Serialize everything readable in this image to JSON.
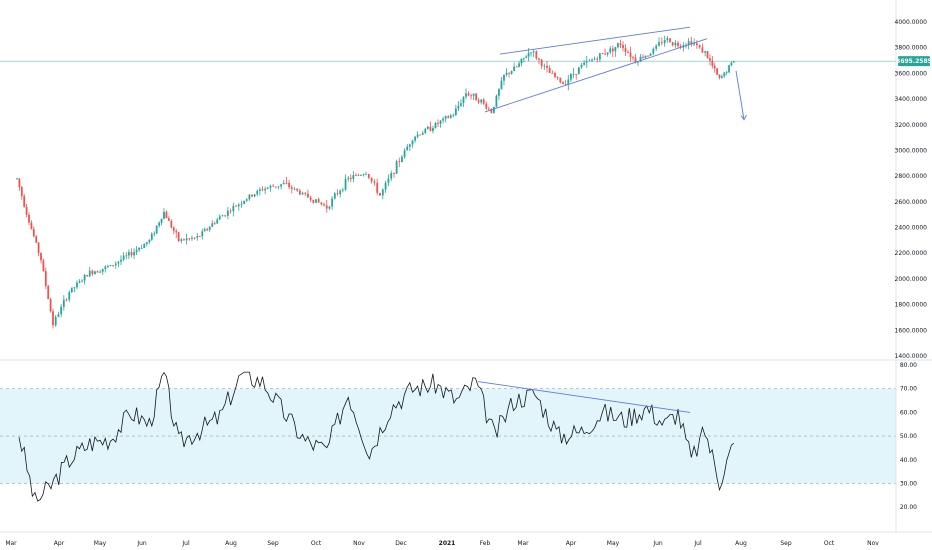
{
  "chart_data": [
    {
      "type": "candlestick",
      "price_axis": {
        "ticks": [
          "4000.0000",
          "3800.0000",
          "3600.0000",
          "3400.0000",
          "3200.0000",
          "3000.0000",
          "2800.0000",
          "2600.0000",
          "2400.0000",
          "2200.0000",
          "2000.0000",
          "1800.0000",
          "1600.0000",
          "1400.0000"
        ],
        "ylim": [
          1400,
          4000
        ]
      },
      "last_price": {
        "value": 3695.2585,
        "label": "3695.2585",
        "color": "#26a69a"
      },
      "x_axis": {
        "tick_labels": [
          "Mar",
          "Apr",
          "May",
          "Jun",
          "Jul",
          "Aug",
          "Sep",
          "Oct",
          "Nov",
          "Dec",
          "2021",
          "Feb",
          "Mar",
          "Apr",
          "May",
          "Jun",
          "Jul",
          "Aug",
          "Sep",
          "Oct",
          "Nov"
        ],
        "year_label": "2021"
      },
      "colors": {
        "up": "#26a69a",
        "down": "#ef5350",
        "trendline": "#5b7be0"
      },
      "price_path": [
        [
          "Mar",
          2780
        ],
        [
          "Mar",
          2450
        ],
        [
          "Mar",
          2150
        ],
        [
          "Mar",
          1650
        ],
        [
          "Apr",
          1900
        ],
        [
          "Apr",
          2050
        ],
        [
          "May",
          2100
        ],
        [
          "May",
          2200
        ],
        [
          "Jun",
          2300
        ],
        [
          "Jun",
          2520
        ],
        [
          "Jun",
          2300
        ],
        [
          "Jul",
          2320
        ],
        [
          "Jul",
          2480
        ],
        [
          "Aug",
          2600
        ],
        [
          "Aug",
          2700
        ],
        [
          "Sep",
          2740
        ],
        [
          "Sep",
          2650
        ],
        [
          "Oct",
          2560
        ],
        [
          "Oct",
          2780
        ],
        [
          "Nov",
          2830
        ],
        [
          "Nov",
          2650
        ],
        [
          "Nov",
          2850
        ],
        [
          "Dec",
          3100
        ],
        [
          "Dec",
          3200
        ],
        [
          "2021",
          3280
        ],
        [
          "2021",
          3450
        ],
        [
          "2021",
          3400
        ],
        [
          "Feb",
          3300
        ],
        [
          "Feb",
          3580
        ],
        [
          "Feb",
          3650
        ],
        [
          "Mar",
          3780
        ],
        [
          "Mar",
          3620
        ],
        [
          "Mar",
          3520
        ],
        [
          "Apr",
          3660
        ],
        [
          "Apr",
          3750
        ],
        [
          "May",
          3830
        ],
        [
          "May",
          3700
        ],
        [
          "May",
          3760
        ],
        [
          "Jun",
          3870
        ],
        [
          "Jun",
          3820
        ],
        [
          "Jun",
          3850
        ],
        [
          "Jul",
          3760
        ],
        [
          "Jul",
          3550
        ],
        [
          "Jul",
          3700
        ]
      ],
      "annotations": {
        "wedge_upper": [
          [
            "Feb",
            3750
          ],
          [
            "Jun",
            3960
          ]
        ],
        "wedge_lower": [
          [
            "Feb",
            3300
          ],
          [
            "Jul",
            3870
          ]
        ],
        "breakdown_arrow": [
          [
            "Jul",
            3620
          ],
          [
            "Aug",
            3240
          ]
        ]
      }
    },
    {
      "type": "line",
      "indicator": "oscillator",
      "y_ticks": [
        "80.00",
        "70.00",
        "60.00",
        "50.00",
        "40.00",
        "30.00",
        "20.00"
      ],
      "ylim": [
        15,
        80
      ],
      "band": [
        30,
        70
      ],
      "band_color": "#e1f5fb",
      "line_color": "#131722",
      "values_path": [
        [
          "Mar",
          51
        ],
        [
          "Mar",
          22
        ],
        [
          "Mar",
          29
        ],
        [
          "Apr",
          40
        ],
        [
          "Apr",
          47
        ],
        [
          "May",
          49
        ],
        [
          "May",
          60
        ],
        [
          "Jun",
          55
        ],
        [
          "Jun",
          76
        ],
        [
          "Jun",
          47
        ],
        [
          "Jul",
          52
        ],
        [
          "Jul",
          58
        ],
        [
          "Aug",
          76
        ],
        [
          "Aug",
          73
        ],
        [
          "Sep",
          60
        ],
        [
          "Sep",
          48
        ],
        [
          "Oct",
          44
        ],
        [
          "Oct",
          68
        ],
        [
          "Nov",
          43
        ],
        [
          "Nov",
          62
        ],
        [
          "Dec",
          70
        ],
        [
          "Dec",
          72
        ],
        [
          "2021",
          65
        ],
        [
          "2021",
          73
        ],
        [
          "Feb",
          50
        ],
        [
          "Feb",
          65
        ],
        [
          "Mar",
          68
        ],
        [
          "Mar",
          50
        ],
        [
          "Apr",
          52
        ],
        [
          "Apr",
          60
        ],
        [
          "May",
          57
        ],
        [
          "May",
          62
        ],
        [
          "Jun",
          55
        ],
        [
          "Jun",
          60
        ],
        [
          "Jun",
          40
        ],
        [
          "Jul",
          52
        ],
        [
          "Jul",
          31
        ],
        [
          "Jul",
          47
        ]
      ],
      "trendline": [
        [
          "Feb",
          73
        ],
        [
          "Jul",
          60
        ]
      ]
    }
  ]
}
